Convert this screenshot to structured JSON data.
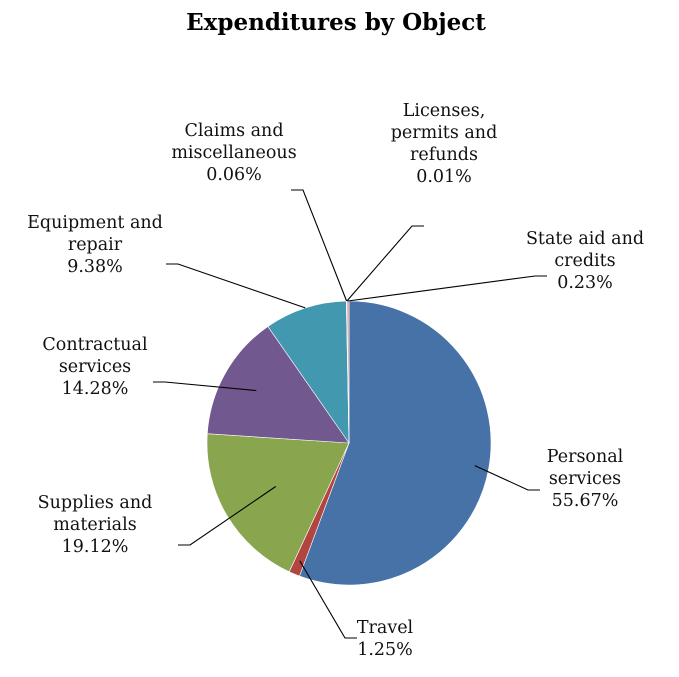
{
  "chart_data": {
    "type": "pie",
    "title": "Expenditures by Object",
    "start_angle_deg": 0,
    "direction": "clockwise",
    "slices": [
      {
        "label_lines": [
          "Personal",
          "services"
        ],
        "label": "Personal services",
        "value": 55.67,
        "value_label": "55.67%",
        "color": "#4672A8"
      },
      {
        "label_lines": [
          "Travel"
        ],
        "label": "Travel",
        "value": 1.25,
        "value_label": "1.25%",
        "color": "#B2453F"
      },
      {
        "label_lines": [
          "Supplies and",
          "materials"
        ],
        "label": "Supplies and materials",
        "value": 19.12,
        "value_label": "19.12%",
        "color": "#89A54E"
      },
      {
        "label_lines": [
          "Contractual",
          "services"
        ],
        "label": "Contractual services",
        "value": 14.28,
        "value_label": "14.28%",
        "color": "#71588F"
      },
      {
        "label_lines": [
          "Equipment and",
          "repair"
        ],
        "label": "Equipment and repair",
        "value": 9.38,
        "value_label": "9.38%",
        "color": "#4298AF"
      },
      {
        "label_lines": [
          "Claims and",
          "miscellaneous"
        ],
        "label": "Claims and miscellaneous",
        "value": 0.06,
        "value_label": "0.06%",
        "color": "#DB843D"
      },
      {
        "label_lines": [
          "Licenses,",
          "permits and",
          "refunds"
        ],
        "label": "Licenses, permits and refunds",
        "value": 0.01,
        "value_label": "0.01%",
        "color": "#93A9CF"
      },
      {
        "label_lines": [
          "State aid and",
          "credits"
        ],
        "label": "State aid and credits",
        "value": 0.23,
        "value_label": "0.23%",
        "color": "#D19392"
      }
    ]
  }
}
